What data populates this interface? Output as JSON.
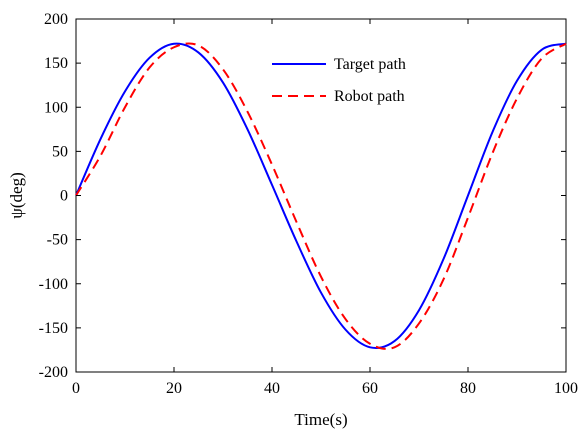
{
  "chart_data": {
    "type": "line",
    "xlabel": "Time(s)",
    "ylabel": "ψ(deg)",
    "xlim": [
      0,
      100
    ],
    "ylim": [
      -200,
      200
    ],
    "xticks": [
      0,
      20,
      40,
      60,
      80,
      100
    ],
    "yticks": [
      -200,
      -150,
      -100,
      -50,
      0,
      50,
      100,
      150,
      200
    ],
    "grid": false,
    "legend_position": "top-right",
    "series": [
      {
        "name": "Target path",
        "color": "#0000ff",
        "style": "solid",
        "x": [
          0,
          5,
          10,
          15,
          20,
          25,
          30,
          35,
          40,
          45,
          50,
          55,
          60,
          65,
          70,
          75,
          80,
          85,
          90,
          95,
          100
        ],
        "y": [
          0,
          64,
          118,
          156,
          172,
          162,
          128,
          75,
          12,
          -52,
          -110,
          -152,
          -172,
          -165,
          -130,
          -72,
          0,
          72,
          130,
          165,
          172
        ]
      },
      {
        "name": "Robot path",
        "color": "#ff0000",
        "style": "dashed",
        "x": [
          0,
          5,
          10,
          15,
          20,
          25,
          30,
          35,
          40,
          45,
          50,
          55,
          60,
          65,
          70,
          75,
          80,
          85,
          90,
          95,
          100
        ],
        "y": [
          0,
          45,
          100,
          145,
          168,
          170,
          143,
          95,
          35,
          -30,
          -92,
          -140,
          -168,
          -172,
          -145,
          -95,
          -25,
          48,
          110,
          155,
          172
        ]
      }
    ]
  }
}
